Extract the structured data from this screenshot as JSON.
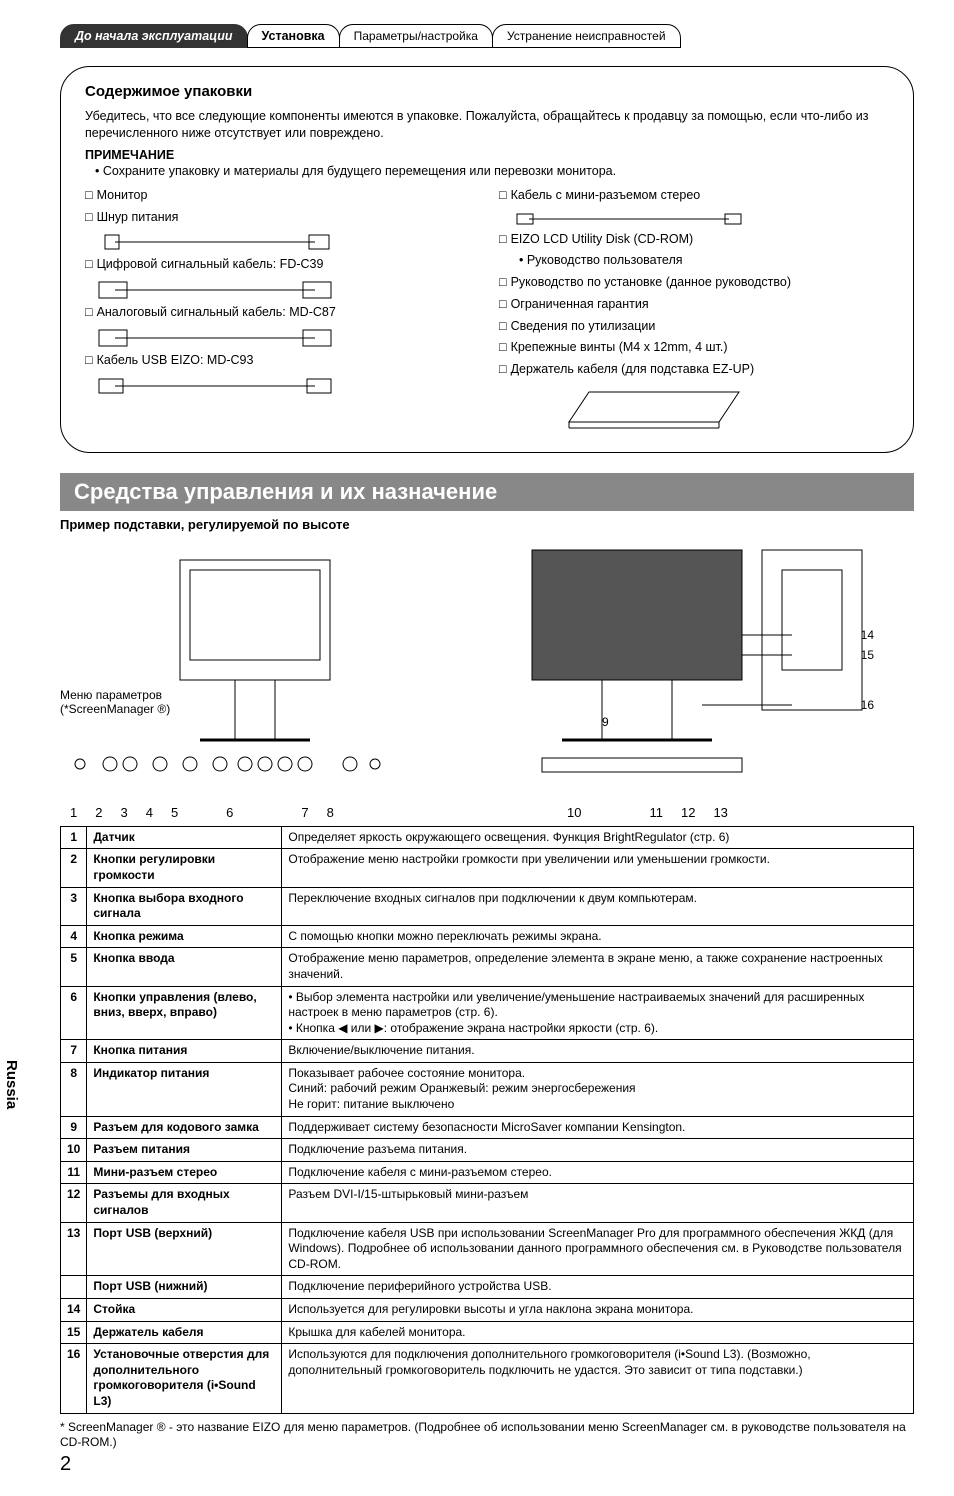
{
  "tabs": [
    {
      "label": "До начала эксплуатации"
    },
    {
      "label": "Установка"
    },
    {
      "label": "Параметры/настройка"
    },
    {
      "label": "Устранение неисправностей"
    }
  ],
  "box": {
    "title": "Содержимое упаковки",
    "intro": "Убедитесь, что все следующие компоненты имеются в упаковке. Пожалуйста, обращайтесь к продавцу за помощью, если что-либо из перечисленного ниже отсутствует или повреждено.",
    "note_label": "ПРИМЕЧАНИЕ",
    "note_bullet": "• Сохраните упаковку и материалы для будущего перемещения или перевозки монитора.",
    "left": [
      "Монитор",
      "Шнур питания",
      "Цифровой сигнальный кабель: FD-C39",
      "Аналоговый сигнальный кабель: MD-C87",
      "Кабель USB EIZO: MD-C93"
    ],
    "right": [
      {
        "text": "Кабель с мини-разъемом стерео"
      },
      {
        "text": "EIZO LCD Utility Disk (CD-ROM)"
      },
      {
        "text": "• Руководство пользователя",
        "sub": true
      },
      {
        "text": "Руководство по установке (данное руководство)"
      },
      {
        "text": "Ограниченная гарантия"
      },
      {
        "text": "Сведения по утилизации"
      },
      {
        "text": "Крепежные винты (M4 x 12mm, 4 шт.)"
      },
      {
        "text": "Держатель кабеля (для подставка EZ-UP)"
      }
    ]
  },
  "section_title": "Средства управления и их назначение",
  "sub_heading": "Пример подставки, регулируемой по высоте",
  "diag": {
    "menu_caption1": "Меню параметров",
    "menu_caption2": "(*ScreenManager ®)",
    "labels_right": [
      "14",
      "15",
      "16",
      "9"
    ],
    "nums_left": [
      "1",
      "2",
      "3",
      "4",
      "5",
      "6",
      "7",
      "8"
    ],
    "nums_right": [
      "10",
      "11",
      "12",
      "13"
    ]
  },
  "rows": [
    {
      "n": "1",
      "name": "Датчик",
      "desc": "Определяет яркость окружающего освещения. Функция BrightRegulator (стр. 6)"
    },
    {
      "n": "2",
      "name": "Кнопки регулировки громкости",
      "desc": "Отображение меню настройки громкости при увеличении или уменьшении громкости."
    },
    {
      "n": "3",
      "name": "Кнопка выбора входного сигнала",
      "desc": "Переключение входных сигналов при подключении к двум компьютерам."
    },
    {
      "n": "4",
      "name": "Кнопка режима",
      "desc": "С помощью кнопки  можно переключать режимы экрана."
    },
    {
      "n": "5",
      "name": "Кнопка ввода",
      "desc": "Отображение меню параметров, определение элемента в экране меню, а также сохранение настроенных значений."
    },
    {
      "n": "6",
      "name": "Кнопки управления (влево, вниз, вверх, вправо)",
      "desc": "• Выбор элемента настройки или увеличение/уменьшение настраиваемых значений для расширенных настроек в меню параметров (стр. 6).\n• Кнопка ◀ или ▶: отображение экрана настройки яркости (стр. 6)."
    },
    {
      "n": "7",
      "name": "Кнопка питания",
      "desc": "Включение/выключение питания."
    },
    {
      "n": "8",
      "name": "Индикатор питания",
      "desc": "Показывает рабочее состояние монитора.\nСиний: рабочий режим          Оранжевый: режим энергосбережения\nНе горит: питание выключено"
    },
    {
      "n": "9",
      "name": "Разъем для кодового замка",
      "desc": "Поддерживает систему безопасности MicroSaver компании Kensington."
    },
    {
      "n": "10",
      "name": "Разъем питания",
      "desc": "Подключение разъема питания."
    },
    {
      "n": "11",
      "name": "Мини-разъем стерео",
      "desc": "Подключение кабеля с мини-разъемом стерео."
    },
    {
      "n": "12",
      "name": "Разъемы для входных сигналов",
      "desc": "Разъем DVI-I/15-штырьковый мини-разъем"
    },
    {
      "n": "13",
      "name": "Порт USB (верхний)",
      "desc": "Подключение кабеля USB при использовании ScreenManager Pro для программного обеспечения ЖКД (для Windows). Подробнее об использовании данного программного обеспечения см. в Руководстве пользователя CD-ROM."
    },
    {
      "n": "",
      "name": "Порт USB (нижний)",
      "desc": "Подключение периферийного устройства USB."
    },
    {
      "n": "14",
      "name": "Стойка",
      "desc": "Используется для регулировки высоты и угла наклона экрана монитора."
    },
    {
      "n": "15",
      "name": "Держатель кабеля",
      "desc": "Крышка для кабелей монитора."
    },
    {
      "n": "16",
      "name": "Установочные отверстия для дополнительного громкоговорителя (i•Sound L3)",
      "desc": "Используются для подключения дополнительного громкоговорителя (i•Sound L3). (Возможно, дополнительный громкоговоритель подключить не удастся. Это зависит от типа подставки.)"
    }
  ],
  "footnote": "* ScreenManager ® - это название EIZO для меню параметров. (Подробнее об использовании меню ScreenManager см. в руководстве пользователя на CD-ROM.)",
  "page_num": "2",
  "side_label": "Russia"
}
